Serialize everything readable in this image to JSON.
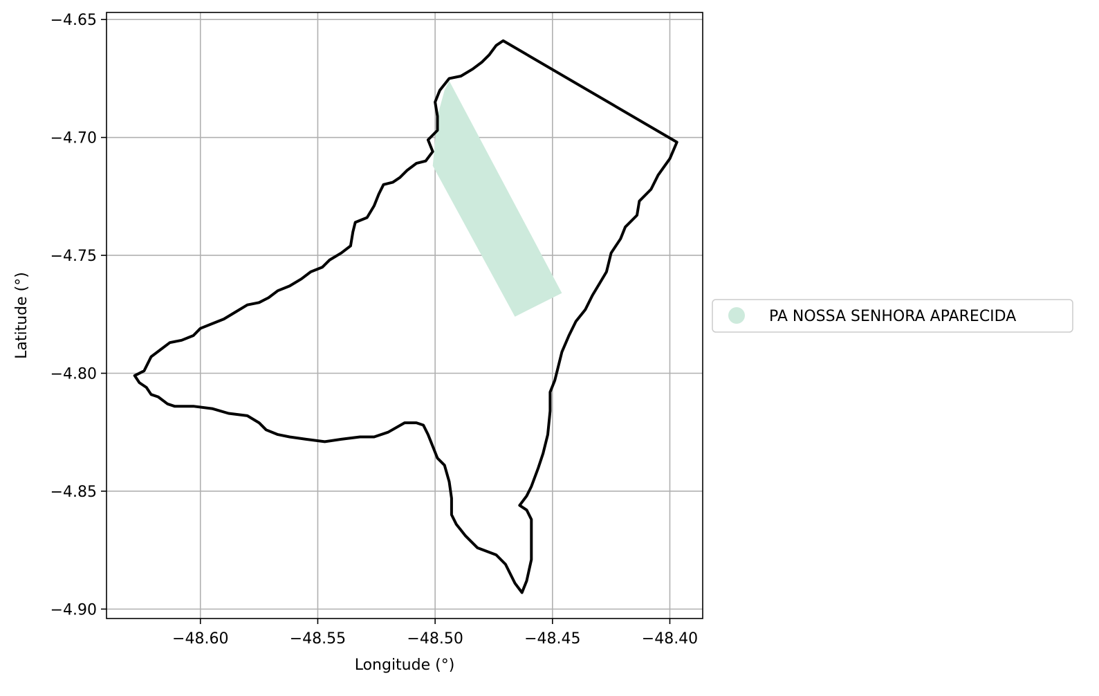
{
  "chart_data": {
    "type": "map",
    "xlabel": "Longitude (°)",
    "ylabel": "Latitude (°)",
    "xlim": [
      -48.64,
      -48.386
    ],
    "ylim": [
      -4.904,
      -4.647
    ],
    "xticks": [
      -48.6,
      -48.55,
      -48.5,
      -48.45,
      -48.4
    ],
    "xtick_labels": [
      "−48.60",
      "−48.55",
      "−48.50",
      "−48.45",
      "−48.40"
    ],
    "yticks": [
      -4.65,
      -4.7,
      -4.75,
      -4.8,
      -4.85,
      -4.9
    ],
    "ytick_labels": [
      "−4.65",
      "−4.70",
      "−4.75",
      "−4.80",
      "−4.85",
      "−4.90"
    ],
    "grid": true,
    "legend_position": "right",
    "legend": [
      {
        "label": "PA NOSSA SENHORA APARECIDA",
        "color": "#cdeadc",
        "marker": "circle"
      }
    ],
    "boundary": {
      "color": "#000000",
      "coordinates": [
        [
          -48.471,
          -4.659
        ],
        [
          -48.397,
          -4.702
        ],
        [
          -48.4,
          -4.709
        ],
        [
          -48.405,
          -4.716
        ],
        [
          -48.408,
          -4.722
        ],
        [
          -48.413,
          -4.727
        ],
        [
          -48.414,
          -4.733
        ],
        [
          -48.419,
          -4.738
        ],
        [
          -48.421,
          -4.743
        ],
        [
          -48.425,
          -4.749
        ],
        [
          -48.427,
          -4.757
        ],
        [
          -48.43,
          -4.762
        ],
        [
          -48.433,
          -4.767
        ],
        [
          -48.436,
          -4.773
        ],
        [
          -48.44,
          -4.778
        ],
        [
          -48.443,
          -4.784
        ],
        [
          -48.446,
          -4.791
        ],
        [
          -48.448,
          -4.799
        ],
        [
          -48.449,
          -4.803
        ],
        [
          -48.451,
          -4.808
        ],
        [
          -48.451,
          -4.816
        ],
        [
          -48.452,
          -4.826
        ],
        [
          -48.454,
          -4.834
        ],
        [
          -48.456,
          -4.84
        ],
        [
          -48.459,
          -4.848
        ],
        [
          -48.461,
          -4.852
        ],
        [
          -48.464,
          -4.856
        ],
        [
          -48.461,
          -4.858
        ],
        [
          -48.459,
          -4.862
        ],
        [
          -48.459,
          -4.868
        ],
        [
          -48.459,
          -4.879
        ],
        [
          -48.461,
          -4.888
        ],
        [
          -48.463,
          -4.893
        ],
        [
          -48.466,
          -4.889
        ],
        [
          -48.47,
          -4.881
        ],
        [
          -48.474,
          -4.877
        ],
        [
          -48.482,
          -4.874
        ],
        [
          -48.487,
          -4.869
        ],
        [
          -48.491,
          -4.864
        ],
        [
          -48.493,
          -4.86
        ],
        [
          -48.493,
          -4.853
        ],
        [
          -48.494,
          -4.846
        ],
        [
          -48.496,
          -4.839
        ],
        [
          -48.499,
          -4.836
        ],
        [
          -48.503,
          -4.826
        ],
        [
          -48.505,
          -4.822
        ],
        [
          -48.508,
          -4.821
        ],
        [
          -48.513,
          -4.821
        ],
        [
          -48.52,
          -4.825
        ],
        [
          -48.526,
          -4.827
        ],
        [
          -48.532,
          -4.827
        ],
        [
          -48.54,
          -4.828
        ],
        [
          -48.547,
          -4.829
        ],
        [
          -48.555,
          -4.828
        ],
        [
          -48.562,
          -4.827
        ],
        [
          -48.567,
          -4.826
        ],
        [
          -48.572,
          -4.824
        ],
        [
          -48.575,
          -4.821
        ],
        [
          -48.58,
          -4.818
        ],
        [
          -48.588,
          -4.817
        ],
        [
          -48.595,
          -4.815
        ],
        [
          -48.603,
          -4.814
        ],
        [
          -48.611,
          -4.814
        ],
        [
          -48.614,
          -4.813
        ],
        [
          -48.618,
          -4.81
        ],
        [
          -48.621,
          -4.809
        ],
        [
          -48.623,
          -4.806
        ],
        [
          -48.626,
          -4.804
        ],
        [
          -48.628,
          -4.801
        ],
        [
          -48.624,
          -4.799
        ],
        [
          -48.621,
          -4.793
        ],
        [
          -48.617,
          -4.79
        ],
        [
          -48.613,
          -4.787
        ],
        [
          -48.608,
          -4.786
        ],
        [
          -48.603,
          -4.784
        ],
        [
          -48.6,
          -4.781
        ],
        [
          -48.595,
          -4.779
        ],
        [
          -48.59,
          -4.777
        ],
        [
          -48.585,
          -4.774
        ],
        [
          -48.58,
          -4.771
        ],
        [
          -48.575,
          -4.77
        ],
        [
          -48.571,
          -4.768
        ],
        [
          -48.567,
          -4.765
        ],
        [
          -48.562,
          -4.763
        ],
        [
          -48.557,
          -4.76
        ],
        [
          -48.553,
          -4.757
        ],
        [
          -48.548,
          -4.755
        ],
        [
          -48.545,
          -4.752
        ],
        [
          -48.54,
          -4.749
        ],
        [
          -48.536,
          -4.746
        ],
        [
          -48.535,
          -4.74
        ],
        [
          -48.534,
          -4.736
        ],
        [
          -48.529,
          -4.734
        ],
        [
          -48.526,
          -4.729
        ],
        [
          -48.524,
          -4.724
        ],
        [
          -48.522,
          -4.72
        ],
        [
          -48.518,
          -4.719
        ],
        [
          -48.515,
          -4.717
        ],
        [
          -48.512,
          -4.714
        ],
        [
          -48.508,
          -4.711
        ],
        [
          -48.504,
          -4.71
        ],
        [
          -48.501,
          -4.706
        ],
        [
          -48.503,
          -4.701
        ],
        [
          -48.499,
          -4.697
        ],
        [
          -48.499,
          -4.691
        ],
        [
          -48.5,
          -4.685
        ],
        [
          -48.498,
          -4.68
        ],
        [
          -48.494,
          -4.675
        ],
        [
          -48.489,
          -4.674
        ],
        [
          -48.484,
          -4.671
        ],
        [
          -48.48,
          -4.668
        ],
        [
          -48.477,
          -4.665
        ],
        [
          -48.474,
          -4.661
        ],
        [
          -48.471,
          -4.659
        ]
      ]
    },
    "area_polygon": {
      "name": "PA NOSSA SENHORA APARECIDA",
      "color": "#cdeadc",
      "coordinates": [
        [
          -48.494,
          -4.676
        ],
        [
          -48.446,
          -4.766
        ],
        [
          -48.466,
          -4.776
        ],
        [
          -48.501,
          -4.712
        ],
        [
          -48.499,
          -4.691
        ],
        [
          -48.496,
          -4.68
        ]
      ]
    }
  }
}
